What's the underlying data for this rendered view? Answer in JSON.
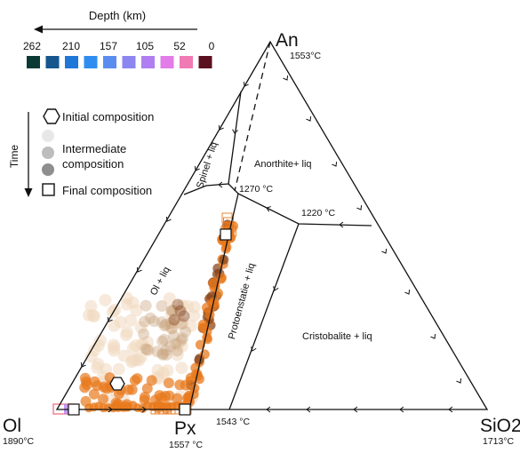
{
  "depth_scale": {
    "title": "Depth (km)",
    "ticks": [
      "262",
      "210",
      "157",
      "105",
      "52",
      "0"
    ],
    "swatches": [
      "#0b3a34",
      "#16568f",
      "#1f78d8",
      "#2f8df0",
      "#5b8df0",
      "#8c86f0",
      "#b07ef0",
      "#e27ce8",
      "#f07ab4",
      "#5b1020"
    ]
  },
  "legend": {
    "time_label": "Time",
    "initial": "Initial composition",
    "intermediate": "Intermediate composition",
    "final": "Final composition"
  },
  "vertices": {
    "an": {
      "label": "An",
      "temp": "1553°C"
    },
    "ol": {
      "label": "Ol",
      "temp": "1890°C"
    },
    "px": {
      "label": "Px",
      "temp": "1557 °C"
    },
    "sio2": {
      "label": "SiO2",
      "temp": "1713°C"
    }
  },
  "fields": {
    "spinel": "Spinel + liq",
    "anorthite": "Anorthite+ liq",
    "olivine": "Ol + liq",
    "protoenstatite": "Protoenstatie + liq",
    "cristobalite": "Cristobalite + liq"
  },
  "points": {
    "p1270": "1270 °C",
    "p1220": "1220 °C",
    "p1543": "1543 °C"
  },
  "colors": {
    "orange": "#e8791c",
    "brown": "#8a4a22",
    "beige": "#f0d9bf",
    "pink": "#f07a8c",
    "violet": "#b07ef0"
  }
}
